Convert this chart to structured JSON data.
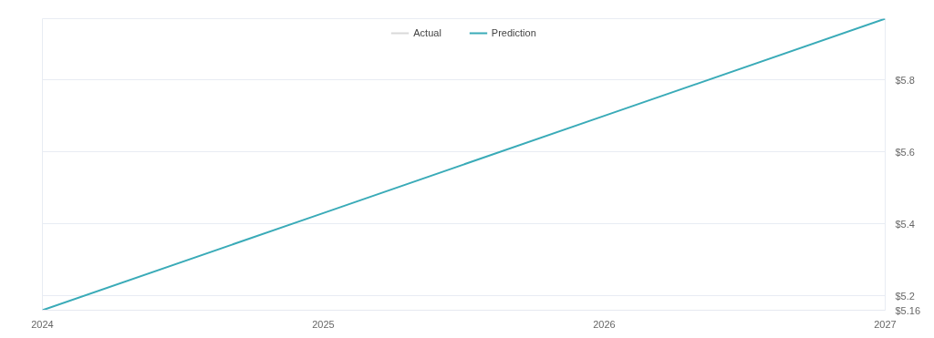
{
  "chart_data": {
    "type": "line",
    "x": [
      2024,
      2025,
      2026,
      2027
    ],
    "series": [
      {
        "name": "Actual",
        "color": "#d9d9d9",
        "values": [
          null,
          null,
          null,
          null
        ]
      },
      {
        "name": "Prediction",
        "color": "#3aabb8",
        "values": [
          5.16,
          5.43,
          5.7,
          5.97
        ]
      }
    ],
    "xlim": [
      2024,
      2027
    ],
    "xticks": [
      2024,
      2025,
      2026,
      2027
    ],
    "ylim": [
      5.16,
      5.97
    ],
    "yticks": [
      {
        "value": 5.16,
        "label": "$5.16"
      },
      {
        "value": 5.2,
        "label": "$5.2"
      },
      {
        "value": 5.4,
        "label": "$5.4"
      },
      {
        "value": 5.6,
        "label": "$5.6"
      },
      {
        "value": 5.8,
        "label": "$5.8"
      },
      {
        "value": 5.97,
        "label": null
      }
    ],
    "grid": "y",
    "legend": "top",
    "marker": "none",
    "line_style": "solid"
  }
}
